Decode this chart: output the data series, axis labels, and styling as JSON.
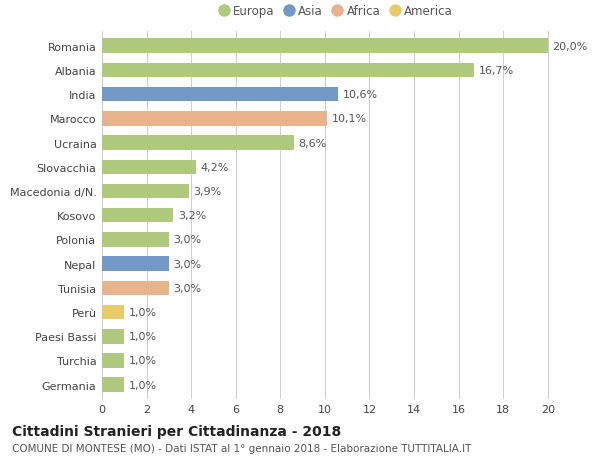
{
  "categories": [
    "Romania",
    "Albania",
    "India",
    "Marocco",
    "Ucraina",
    "Slovacchia",
    "Macedonia d/N.",
    "Kosovo",
    "Polonia",
    "Nepal",
    "Tunisia",
    "Perù",
    "Paesi Bassi",
    "Turchia",
    "Germania"
  ],
  "values": [
    20.0,
    16.7,
    10.6,
    10.1,
    8.6,
    4.2,
    3.9,
    3.2,
    3.0,
    3.0,
    3.0,
    1.0,
    1.0,
    1.0,
    1.0
  ],
  "labels": [
    "20,0%",
    "16,7%",
    "10,6%",
    "10,1%",
    "8,6%",
    "4,2%",
    "3,9%",
    "3,2%",
    "3,0%",
    "3,0%",
    "3,0%",
    "1,0%",
    "1,0%",
    "1,0%",
    "1,0%"
  ],
  "continents": [
    "Europa",
    "Europa",
    "Asia",
    "Africa",
    "Europa",
    "Europa",
    "Europa",
    "Europa",
    "Europa",
    "Asia",
    "Africa",
    "America",
    "Europa",
    "Europa",
    "Europa"
  ],
  "colors": {
    "Europa": "#afc97e",
    "Asia": "#7399c6",
    "Africa": "#e8b48e",
    "America": "#e8cc6a"
  },
  "legend_order": [
    "Europa",
    "Asia",
    "Africa",
    "America"
  ],
  "title": "Cittadini Stranieri per Cittadinanza - 2018",
  "subtitle": "COMUNE DI MONTESE (MO) - Dati ISTAT al 1° gennaio 2018 - Elaborazione TUTTITALIA.IT",
  "xlim": [
    0,
    21
  ],
  "xticks": [
    0,
    2,
    4,
    6,
    8,
    10,
    12,
    14,
    16,
    18,
    20
  ],
  "background_color": "#ffffff",
  "grid_color": "#cccccc",
  "bar_height": 0.6,
  "label_fontsize": 8.0,
  "tick_fontsize": 8.0,
  "legend_fontsize": 8.5,
  "title_fontsize": 10.0,
  "subtitle_fontsize": 7.5
}
